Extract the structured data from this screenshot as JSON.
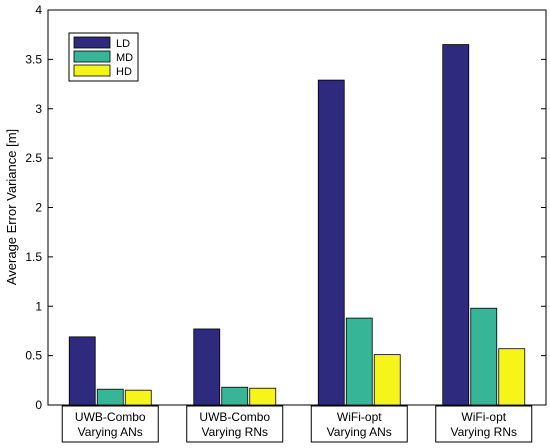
{
  "chart_data": {
    "type": "bar",
    "title": "",
    "xlabel": "",
    "ylabel": "Average Error Variance [m]",
    "ylim": [
      0,
      4
    ],
    "yticks": [
      0,
      0.5,
      1,
      1.5,
      2,
      2.5,
      3,
      3.5,
      4
    ],
    "ytick_labels": [
      "0",
      "0.5",
      "1",
      "1.5",
      "2",
      "2.5",
      "3",
      "3.5",
      "4"
    ],
    "grid": false,
    "legend_position": "top-left",
    "categories": [
      [
        "UWB-Combo",
        "Varying ANs"
      ],
      [
        "UWB-Combo",
        "Varying RNs"
      ],
      [
        "WiFi-opt",
        "Varying ANs"
      ],
      [
        "WiFi-opt",
        "Varying RNs"
      ]
    ],
    "series": [
      {
        "name": "LD",
        "color": "#2e2a7e",
        "values": [
          0.69,
          0.77,
          3.29,
          3.65
        ]
      },
      {
        "name": "MD",
        "color": "#36b597",
        "values": [
          0.16,
          0.18,
          0.88,
          0.98
        ]
      },
      {
        "name": "HD",
        "color": "#f5f51a",
        "values": [
          0.15,
          0.17,
          0.51,
          0.57
        ]
      }
    ]
  }
}
